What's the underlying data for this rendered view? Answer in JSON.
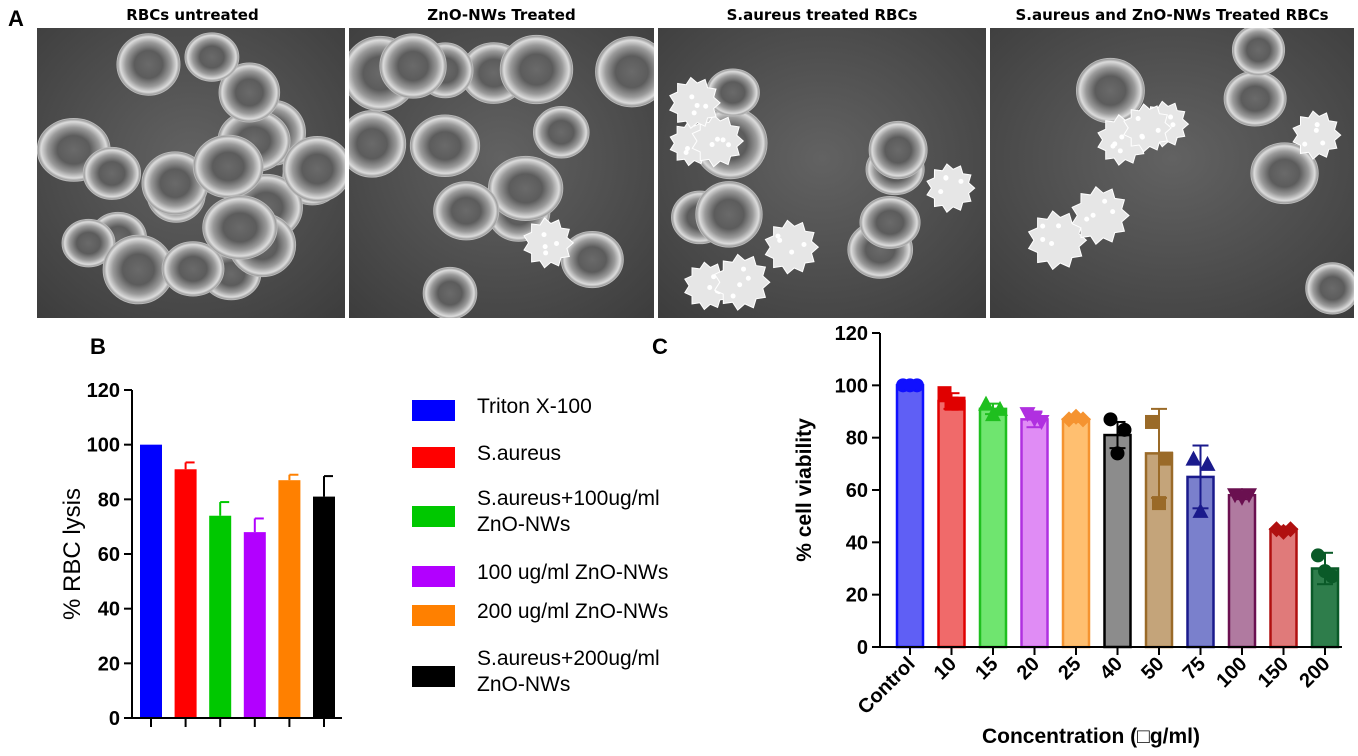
{
  "panel_A": {
    "letter": "A",
    "images": [
      {
        "title": "RBCs untreated",
        "normal_cells": 20,
        "echinocytes": 0
      },
      {
        "title": "ZnO-NWs Treated",
        "normal_cells": 14,
        "echinocytes": 1
      },
      {
        "title": "S.aureus treated RBCs",
        "normal_cells": 8,
        "echinocytes": 7
      },
      {
        "title": "S.aureus and ZnO-NWs Treated RBCs",
        "normal_cells": 5,
        "echinocytes": 6
      }
    ]
  },
  "panel_B": {
    "letter": "B"
  },
  "panel_C": {
    "letter": "C"
  },
  "colors": {
    "triton": "#0000ff",
    "saureus": "#ff0000",
    "sa100": "#00c800",
    "zno100": "#b200ff",
    "zno200": "#ff8000",
    "sa200": "#000000"
  },
  "chart_data": [
    {
      "type": "bar",
      "ylabel": "% RBC lysis",
      "xlabel": "",
      "ylim": [
        0,
        120
      ],
      "yticks": [
        0,
        20,
        40,
        60,
        80,
        100,
        120
      ],
      "categories": [
        "Triton X-100",
        "S.aureus",
        "S.aureus+100ug/ml\nZnO-NWs",
        "100 ug/ml ZnO-NWs",
        "200 ug/ml ZnO-NWs",
        "S.aureus+200ug/ml\nZnO-NWs"
      ],
      "values": [
        100,
        91,
        74,
        68,
        87,
        81
      ],
      "errors": [
        0,
        2.5,
        5,
        5,
        2,
        7.5
      ],
      "colors": [
        "#0000ff",
        "#ff0000",
        "#00c800",
        "#b200ff",
        "#ff8000",
        "#000000"
      ],
      "legend": "right"
    },
    {
      "type": "bar",
      "ylabel": "% cell viability",
      "xlabel": "Concentration (□g/ml)",
      "ylim": [
        0,
        120
      ],
      "yticks": [
        0,
        20,
        40,
        60,
        80,
        100,
        120
      ],
      "categories": [
        "Control",
        "10",
        "15",
        "20",
        "25",
        "40",
        "50",
        "75",
        "100",
        "150",
        "200"
      ],
      "values": [
        100,
        94,
        91,
        87,
        87,
        81,
        74,
        65,
        58,
        45,
        30
      ],
      "errors": [
        0.5,
        3,
        2,
        3,
        1,
        5,
        17,
        12,
        1.5,
        1,
        6
      ],
      "points": [
        [
          100,
          100,
          100
        ],
        [
          97,
          93,
          93
        ],
        [
          93,
          91,
          89
        ],
        [
          89,
          86,
          87
        ],
        [
          87,
          87,
          88
        ],
        [
          87,
          83,
          74
        ],
        [
          86,
          72,
          55
        ],
        [
          72,
          70,
          52
        ],
        [
          58,
          58,
          57
        ],
        [
          45,
          45,
          44
        ],
        [
          35,
          27,
          29
        ]
      ],
      "markers": [
        "circle",
        "square",
        "triangle",
        "triangle-down",
        "diamond",
        "circle",
        "square",
        "triangle",
        "triangle-down",
        "diamond",
        "circle"
      ],
      "fill_colors": [
        "#5f5ff5",
        "#f06a6a",
        "#6fe56f",
        "#e08cf5",
        "#ffbf70",
        "#8c8c8c",
        "#c4a47a",
        "#7a80cc",
        "#b07aa0",
        "#e07a7a",
        "#2e7d4b"
      ],
      "edge_colors": [
        "#1010ff",
        "#e00000",
        "#1fbf1f",
        "#b030e0",
        "#f59330",
        "#000000",
        "#9a6a28",
        "#1a1a8c",
        "#6a1050",
        "#b01010",
        "#0a5a28"
      ]
    }
  ]
}
